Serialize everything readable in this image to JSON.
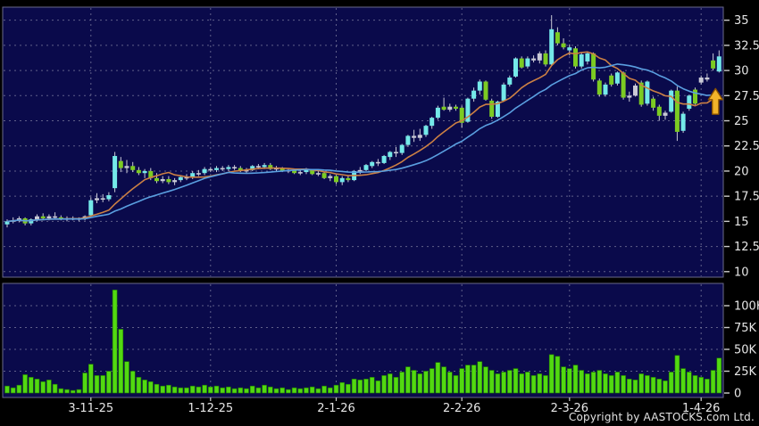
{
  "meta": {
    "copyright": "Copyright by AASTOCKS.com Ltd."
  },
  "colors": {
    "page_bg": "#000000",
    "plot_bg": "#0a0a4b",
    "pane_border": "#6a6a8a",
    "grid": "#7d7da0",
    "up_candle": "#74e9e9",
    "down_candle": "#7ccb22",
    "neutral_candle": "#c9c9d6",
    "wick": "#c9c9d6",
    "ma_fast": "#cc8044",
    "ma_slow": "#5a9fe0",
    "volume_bar": "#52d911",
    "axis_text": "#e6e6e6",
    "tick": "#cccccc",
    "arrow_fill": "#f2b32a",
    "arrow_border": "#8a5200"
  },
  "chart_data": {
    "type": "candlestick-with-volume",
    "title": "",
    "grid": true,
    "price_axis": {
      "side": "right",
      "ticks": [
        35,
        32.5,
        30,
        27.5,
        25,
        22.5,
        20,
        17.5,
        15,
        12.5,
        10
      ],
      "tick_labels": [
        "35",
        "32.5",
        "30",
        "27.5",
        "25",
        "22.5",
        "20",
        "17.5",
        "15",
        "12.5",
        "10"
      ],
      "range": [
        9.45,
        36.3
      ]
    },
    "volume_axis": {
      "side": "right",
      "ticks": [
        100000,
        75000,
        50000,
        25000,
        0
      ],
      "tick_labels": [
        "100K",
        "75K",
        "50K",
        "25K",
        "0"
      ],
      "grid_ticks": [
        100000,
        75000,
        50000,
        25000
      ],
      "range": [
        0,
        130000
      ]
    },
    "x_axis": {
      "labels": [
        {
          "label": "3-11-25",
          "index": 14
        },
        {
          "label": "1-12-25",
          "index": 34
        },
        {
          "label": "2-1-26",
          "index": 55
        },
        {
          "label": "2-2-26",
          "index": 76
        },
        {
          "label": "2-3-26",
          "index": 94
        },
        {
          "label": "1-4-26",
          "index": 116
        }
      ]
    },
    "overlays": [
      {
        "name": "ma-fast",
        "window": 10,
        "color_key": "ma_fast"
      },
      {
        "name": "ma-slow",
        "window": 20,
        "color_key": "ma_slow"
      }
    ],
    "annotation": {
      "type": "up-arrow",
      "index": 118.4,
      "tip_price": 28.2,
      "shoulder_price": 27.1,
      "base_price": 25.65
    },
    "volume_unit": 1000,
    "candle_fields": [
      "open",
      "high",
      "low",
      "close",
      "volume_K",
      "color(u=cyan-up,d=green-down,n=gray-doji)"
    ],
    "candles": [
      [
        14.7,
        15.2,
        14.4,
        15.0,
        8,
        "u"
      ],
      [
        15.0,
        15.4,
        14.8,
        15.1,
        6,
        "n"
      ],
      [
        15.1,
        15.5,
        14.9,
        15.3,
        9,
        "n"
      ],
      [
        15.3,
        15.4,
        14.6,
        14.8,
        21,
        "d"
      ],
      [
        14.8,
        15.3,
        14.6,
        15.2,
        18,
        "u"
      ],
      [
        15.2,
        15.7,
        15.0,
        15.5,
        16,
        "n"
      ],
      [
        15.5,
        15.8,
        15.2,
        15.3,
        13,
        "d"
      ],
      [
        15.3,
        15.7,
        15.1,
        15.5,
        15,
        "n"
      ],
      [
        15.5,
        15.9,
        15.3,
        15.4,
        10,
        "n"
      ],
      [
        15.4,
        15.6,
        15.1,
        15.2,
        5,
        "d"
      ],
      [
        15.2,
        15.5,
        15.0,
        15.3,
        4,
        "n"
      ],
      [
        15.3,
        15.5,
        15.1,
        15.2,
        3,
        "n"
      ],
      [
        15.2,
        15.4,
        15.0,
        15.3,
        4,
        "n"
      ],
      [
        15.3,
        15.6,
        15.1,
        15.5,
        23,
        "n"
      ],
      [
        15.6,
        17.4,
        15.5,
        17.1,
        33,
        "u"
      ],
      [
        17.1,
        17.8,
        16.8,
        17.3,
        20,
        "n"
      ],
      [
        17.3,
        17.7,
        16.9,
        17.2,
        20,
        "n"
      ],
      [
        17.2,
        17.9,
        17.0,
        17.6,
        25,
        "u"
      ],
      [
        18.3,
        21.9,
        17.9,
        21.5,
        118,
        "u"
      ],
      [
        21.0,
        21.4,
        19.9,
        20.3,
        73,
        "d"
      ],
      [
        20.3,
        21.1,
        19.8,
        20.5,
        36,
        "n"
      ],
      [
        20.5,
        20.9,
        19.9,
        20.1,
        25,
        "d"
      ],
      [
        20.1,
        20.4,
        19.6,
        19.8,
        18,
        "d"
      ],
      [
        19.8,
        20.2,
        19.3,
        20.0,
        15,
        "u"
      ],
      [
        20.0,
        20.3,
        19.1,
        19.3,
        13,
        "d"
      ],
      [
        19.3,
        19.8,
        18.8,
        19.0,
        10,
        "d"
      ],
      [
        19.0,
        19.5,
        18.8,
        19.2,
        8,
        "n"
      ],
      [
        19.2,
        19.5,
        18.7,
        18.9,
        9,
        "d"
      ],
      [
        18.9,
        19.3,
        18.6,
        19.1,
        7,
        "n"
      ],
      [
        19.1,
        19.6,
        18.9,
        19.4,
        6,
        "u"
      ],
      [
        19.4,
        19.7,
        19.1,
        19.4,
        6,
        "n"
      ],
      [
        19.4,
        20.0,
        19.2,
        19.8,
        8,
        "u"
      ],
      [
        19.8,
        20.1,
        19.5,
        19.8,
        7,
        "n"
      ],
      [
        19.8,
        20.4,
        19.6,
        20.2,
        9,
        "u"
      ],
      [
        20.2,
        20.4,
        19.9,
        20.1,
        7,
        "n"
      ],
      [
        20.1,
        20.5,
        19.9,
        20.3,
        8,
        "u"
      ],
      [
        20.3,
        20.5,
        20.0,
        20.2,
        6,
        "n"
      ],
      [
        20.2,
        20.6,
        20.0,
        20.4,
        7,
        "u"
      ],
      [
        20.4,
        20.6,
        20.1,
        20.3,
        5,
        "n"
      ],
      [
        20.3,
        20.5,
        19.9,
        20.0,
        6,
        "d"
      ],
      [
        20.0,
        20.3,
        19.8,
        20.1,
        5,
        "n"
      ],
      [
        20.1,
        20.6,
        20.0,
        20.5,
        8,
        "u"
      ],
      [
        20.5,
        20.7,
        20.2,
        20.4,
        6,
        "n"
      ],
      [
        20.4,
        20.8,
        20.2,
        20.6,
        9,
        "u"
      ],
      [
        20.6,
        20.8,
        20.1,
        20.2,
        7,
        "d"
      ],
      [
        20.2,
        20.5,
        20.0,
        20.3,
        5,
        "n"
      ],
      [
        20.3,
        20.4,
        19.9,
        20.0,
        6,
        "d"
      ],
      [
        20.0,
        20.3,
        19.8,
        20.1,
        4,
        "n"
      ],
      [
        20.1,
        20.2,
        19.7,
        19.8,
        6,
        "d"
      ],
      [
        19.8,
        20.1,
        19.6,
        19.9,
        5,
        "n"
      ],
      [
        19.9,
        20.3,
        19.7,
        20.1,
        6,
        "u"
      ],
      [
        20.1,
        20.2,
        19.6,
        19.7,
        7,
        "d"
      ],
      [
        19.7,
        20.0,
        19.5,
        19.8,
        5,
        "n"
      ],
      [
        19.8,
        19.9,
        19.2,
        19.3,
        8,
        "d"
      ],
      [
        19.3,
        19.7,
        19.0,
        19.5,
        6,
        "n"
      ],
      [
        19.5,
        19.6,
        18.7,
        18.9,
        9,
        "d"
      ],
      [
        18.9,
        19.5,
        18.6,
        19.3,
        12,
        "u"
      ],
      [
        19.3,
        19.6,
        18.9,
        19.1,
        10,
        "d"
      ],
      [
        19.1,
        20.1,
        19.0,
        20.0,
        16,
        "u"
      ],
      [
        20.0,
        20.4,
        19.7,
        20.1,
        15,
        "n"
      ],
      [
        20.1,
        20.7,
        20.0,
        20.6,
        16,
        "u"
      ],
      [
        20.5,
        21.0,
        20.3,
        20.9,
        18,
        "u"
      ],
      [
        20.9,
        21.2,
        20.5,
        20.8,
        14,
        "n"
      ],
      [
        20.8,
        21.6,
        20.7,
        21.5,
        20,
        "u"
      ],
      [
        21.4,
        22.0,
        21.1,
        21.9,
        22,
        "u"
      ],
      [
        21.9,
        22.4,
        21.4,
        21.8,
        18,
        "n"
      ],
      [
        21.8,
        22.7,
        21.6,
        22.6,
        24,
        "u"
      ],
      [
        22.6,
        23.6,
        22.4,
        23.5,
        30,
        "u"
      ],
      [
        23.5,
        24.1,
        22.9,
        23.3,
        26,
        "n"
      ],
      [
        23.3,
        24.2,
        23.0,
        23.6,
        22,
        "n"
      ],
      [
        23.6,
        24.6,
        23.4,
        24.5,
        25,
        "u"
      ],
      [
        24.5,
        25.4,
        24.2,
        25.3,
        28,
        "u"
      ],
      [
        25.3,
        26.5,
        25.1,
        26.3,
        35,
        "u"
      ],
      [
        26.4,
        27.3,
        26.0,
        26.1,
        30,
        "d"
      ],
      [
        26.1,
        26.7,
        25.9,
        26.4,
        24,
        "n"
      ],
      [
        26.4,
        26.6,
        26.0,
        26.2,
        20,
        "d"
      ],
      [
        26.3,
        26.5,
        24.3,
        24.8,
        28,
        "d"
      ],
      [
        24.9,
        27.3,
        24.8,
        27.2,
        32,
        "u"
      ],
      [
        27.2,
        28.3,
        26.9,
        28.0,
        32,
        "u"
      ],
      [
        28.0,
        29.1,
        27.6,
        28.9,
        36,
        "u"
      ],
      [
        28.9,
        29.0,
        27.0,
        27.1,
        30,
        "d"
      ],
      [
        27.0,
        27.2,
        25.2,
        25.4,
        26,
        "d"
      ],
      [
        25.4,
        27.0,
        25.3,
        26.9,
        22,
        "u"
      ],
      [
        27.0,
        28.8,
        26.9,
        28.6,
        24,
        "u"
      ],
      [
        28.6,
        29.5,
        28.4,
        29.3,
        26,
        "u"
      ],
      [
        29.4,
        31.3,
        29.3,
        31.2,
        28,
        "u"
      ],
      [
        31.2,
        31.4,
        30.2,
        30.3,
        22,
        "d"
      ],
      [
        30.4,
        31.4,
        30.2,
        31.2,
        24,
        "u"
      ],
      [
        31.2,
        31.5,
        30.8,
        31.0,
        20,
        "n"
      ],
      [
        31.0,
        31.9,
        30.7,
        31.7,
        22,
        "n"
      ],
      [
        31.7,
        32.0,
        30.4,
        30.6,
        20,
        "d"
      ],
      [
        30.6,
        35.5,
        30.5,
        34.1,
        44,
        "u"
      ],
      [
        33.8,
        34.3,
        32.5,
        32.7,
        42,
        "d"
      ],
      [
        32.7,
        33.2,
        32.1,
        32.3,
        30,
        "d"
      ],
      [
        32.0,
        32.6,
        31.5,
        32.3,
        28,
        "u"
      ],
      [
        32.2,
        32.4,
        30.2,
        30.4,
        32,
        "d"
      ],
      [
        30.4,
        31.8,
        30.2,
        31.6,
        26,
        "u"
      ],
      [
        30.9,
        31.9,
        30.6,
        31.7,
        22,
        "u"
      ],
      [
        31.7,
        31.8,
        28.9,
        29.1,
        24,
        "d"
      ],
      [
        29.0,
        29.2,
        27.4,
        27.6,
        26,
        "d"
      ],
      [
        27.6,
        28.8,
        27.4,
        28.6,
        22,
        "u"
      ],
      [
        29.5,
        29.7,
        28.4,
        28.6,
        20,
        "d"
      ],
      [
        28.7,
        29.9,
        28.5,
        29.8,
        24,
        "u"
      ],
      [
        29.8,
        29.9,
        27.1,
        27.3,
        20,
        "d"
      ],
      [
        27.3,
        27.9,
        26.9,
        27.5,
        16,
        "n"
      ],
      [
        27.5,
        28.7,
        27.4,
        28.5,
        15,
        "n"
      ],
      [
        28.8,
        29.0,
        26.4,
        26.6,
        22,
        "d"
      ],
      [
        26.7,
        29.0,
        26.5,
        28.9,
        20,
        "u"
      ],
      [
        27.2,
        27.4,
        26.0,
        26.3,
        18,
        "d"
      ],
      [
        26.4,
        26.6,
        25.0,
        25.5,
        16,
        "d"
      ],
      [
        25.5,
        26.0,
        25.1,
        25.8,
        14,
        "n"
      ],
      [
        25.9,
        28.1,
        25.8,
        28.0,
        24,
        "u"
      ],
      [
        28.0,
        28.4,
        23.0,
        23.9,
        43,
        "d"
      ],
      [
        24.0,
        25.9,
        23.8,
        25.7,
        28,
        "u"
      ],
      [
        26.2,
        27.6,
        26.0,
        27.5,
        24,
        "u"
      ],
      [
        28.1,
        28.3,
        26.6,
        26.7,
        20,
        "d"
      ],
      [
        28.8,
        29.5,
        28.6,
        29.3,
        18,
        "n"
      ],
      [
        29.3,
        29.7,
        28.9,
        29.1,
        16,
        "n"
      ],
      [
        31.0,
        31.7,
        30.0,
        30.2,
        26,
        "d"
      ],
      [
        29.9,
        32.0,
        29.8,
        31.4,
        40,
        "u"
      ]
    ]
  }
}
